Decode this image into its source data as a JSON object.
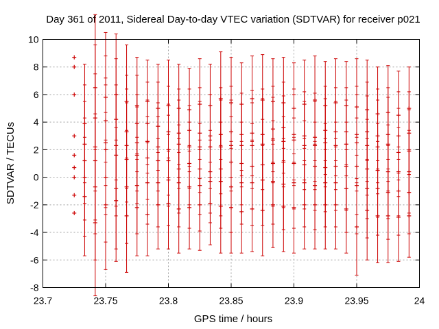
{
  "chart_data": {
    "type": "errorbar-scatter",
    "title": "Day 361 of 2011, Sidereal Day-to-day VTEC variation (SDTVAR) for receiver p021",
    "xlabel": "GPS time / hours",
    "ylabel": "SDTVAR / TECUs",
    "xlim": [
      23.7,
      24.0
    ],
    "ylim": [
      -8,
      10
    ],
    "xticks": [
      "23.7",
      "23.75",
      "23.8",
      "23.85",
      "23.9",
      "23.95",
      "24"
    ],
    "yticks": [
      "-8",
      "-6",
      "-4",
      "-2",
      "0",
      "2",
      "4",
      "6",
      "8",
      "10"
    ],
    "grid": true,
    "color": "#cc0000",
    "series": [
      {
        "x": 23.725,
        "values": [
          8.7,
          8.0,
          6.0,
          3.0,
          1.6,
          0.7,
          0.0,
          -1.3,
          -2.6
        ],
        "err": 0.0
      },
      {
        "x": 23.7333,
        "values": [
          3.9,
          2.4,
          1.2,
          0.0,
          -1.4
        ],
        "err": 4.3
      },
      {
        "x": 23.7417,
        "values": [
          6.5,
          4.3,
          2.2,
          1.2,
          -0.7,
          -3.3
        ],
        "err": 5.3
      },
      {
        "x": 23.75,
        "values": [
          5.8,
          4.1,
          2.5,
          2.0,
          0.0,
          -2.0
        ],
        "err": 4.7
      },
      {
        "x": 23.7583,
        "values": [
          6.0,
          4.2,
          2.3,
          1.6,
          -0.8,
          -1.7
        ],
        "err": 4.4
      },
      {
        "x": 23.7667,
        "values": [
          5.5,
          3.3,
          2.3,
          1.3,
          -0.7,
          -2.8
        ],
        "err": 4.1
      },
      {
        "x": 23.775,
        "values": [
          5.2,
          3.9,
          2.5,
          1.6,
          -0.6,
          -2.2
        ],
        "err": 3.5
      },
      {
        "x": 23.7833,
        "values": [
          5.5,
          3.9,
          2.6,
          1.4,
          -0.4,
          -2.7
        ],
        "err": 3.0
      },
      {
        "x": 23.7917,
        "values": [
          5.0,
          3.7,
          2.2,
          1.2,
          -0.4,
          -2.0
        ],
        "err": 3.2
      },
      {
        "x": 23.8,
        "values": [
          5.2,
          3.3,
          2.0,
          1.2,
          -0.2,
          -1.9
        ],
        "err": 3.3
      },
      {
        "x": 23.8083,
        "values": [
          5.0,
          3.2,
          2.4,
          0.6,
          -0.4,
          -2.3
        ],
        "err": 3.2
      },
      {
        "x": 23.8167,
        "values": [
          4.9,
          3.4,
          2.2,
          1.0,
          -0.7,
          -2.2
        ],
        "err": 3.0
      },
      {
        "x": 23.825,
        "values": [
          5.3,
          3.2,
          2.2,
          0.6,
          -0.6,
          -2.0
        ],
        "err": 3.3
      },
      {
        "x": 23.8333,
        "values": [
          5.2,
          3.0,
          2.2,
          0.4,
          -0.3,
          -1.9
        ],
        "err": 3.0
      },
      {
        "x": 23.8417,
        "values": [
          5.7,
          3.1,
          2.2,
          0.6,
          -0.3,
          -2.1
        ],
        "err": 3.4
      },
      {
        "x": 23.85,
        "values": [
          5.4,
          3.3,
          2.3,
          1.1,
          -0.7,
          -2.2
        ],
        "err": 3.3
      },
      {
        "x": 23.8583,
        "values": [
          5.3,
          3.1,
          2.3,
          1.0,
          -0.4,
          -2.5
        ],
        "err": 3.0
      },
      {
        "x": 23.8667,
        "values": [
          5.7,
          3.2,
          2.3,
          0.8,
          -0.4,
          -2.3
        ],
        "err": 3.1
      },
      {
        "x": 23.875,
        "values": [
          5.6,
          3.1,
          2.4,
          0.9,
          -0.2,
          -2.4
        ],
        "err": 3.3
      },
      {
        "x": 23.8833,
        "values": [
          5.5,
          3.5,
          2.7,
          1.0,
          -0.3,
          -2.0
        ],
        "err": 3.1
      },
      {
        "x": 23.8917,
        "values": [
          5.4,
          3.6,
          2.6,
          1.1,
          -0.5,
          -2.1
        ],
        "err": 3.3
      },
      {
        "x": 23.9,
        "values": [
          5.0,
          3.1,
          2.7,
          1.0,
          -0.4,
          -2.2
        ],
        "err": 3.3
      },
      {
        "x": 23.9083,
        "values": [
          5.3,
          3.0,
          2.3,
          0.9,
          -0.4,
          -2.0
        ],
        "err": 3.2
      },
      {
        "x": 23.9167,
        "values": [
          5.6,
          2.9,
          2.3,
          0.8,
          -0.6,
          -2.0
        ],
        "err": 3.2
      },
      {
        "x": 23.925,
        "values": [
          5.2,
          3.4,
          2.5,
          0.7,
          -0.4,
          -2.0
        ],
        "err": 3.2
      },
      {
        "x": 23.9333,
        "values": [
          5.4,
          3.3,
          2.3,
          0.8,
          -0.4,
          -2.0
        ],
        "err": 3.2
      },
      {
        "x": 23.9417,
        "values": [
          5.2,
          3.3,
          2.4,
          0.8,
          -0.8,
          -2.3
        ],
        "err": 3.2
      },
      {
        "x": 23.95,
        "values": [
          5.1,
          3.1,
          2.5,
          0.8,
          -0.6,
          -3.6
        ],
        "err": 3.5
      },
      {
        "x": 23.9583,
        "values": [
          4.9,
          3.3,
          2.3,
          0.6,
          -0.8,
          -2.4
        ],
        "err": 3.6
      },
      {
        "x": 23.9667,
        "values": [
          4.6,
          3.0,
          2.2,
          0.5,
          -0.8,
          -2.8
        ],
        "err": 3.4
      },
      {
        "x": 23.975,
        "values": [
          4.7,
          3.1,
          2.4,
          0.4,
          -1.1,
          -2.8
        ],
        "err": 3.4
      },
      {
        "x": 23.9833,
        "values": [
          4.5,
          3.0,
          1.8,
          0.4,
          -1.0,
          -2.9
        ],
        "err": 3.2
      },
      {
        "x": 23.9917,
        "values": [
          5.0,
          3.2,
          1.9,
          0.4,
          -1.1,
          -2.8
        ],
        "err": 3.0
      }
    ]
  }
}
